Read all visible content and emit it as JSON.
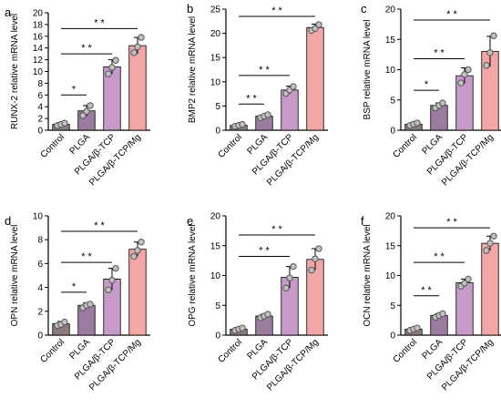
{
  "figure": {
    "colors": {
      "bars": [
        "#8b7b7b",
        "#9b7ba0",
        "#c79ac9",
        "#f4a6a6"
      ],
      "points": "#c0c0c0",
      "axis": "#000000"
    }
  },
  "chart_data": [
    {
      "type": "bar",
      "panel_label": "a",
      "ylabel": "RUNX-2 relative mRNA level",
      "categories": [
        "Control",
        "PLGA",
        "PLGA/β-TCP",
        "PLGA/β-TCP/Mg"
      ],
      "yticks": [
        "0",
        "2",
        "4",
        "6",
        "8",
        "10",
        "12",
        "14",
        "16",
        "18",
        "20"
      ],
      "ylim": [
        0,
        20
      ],
      "values": [
        1.0,
        3.3,
        10.8,
        14.4
      ],
      "errors": [
        0.3,
        0.9,
        1.2,
        1.4
      ],
      "points": [
        [
          0.8,
          1.0,
          1.2
        ],
        [
          2.5,
          3.2,
          4.2
        ],
        [
          9.6,
          10.7,
          11.9
        ],
        [
          13.2,
          14.2,
          15.8
        ]
      ],
      "significance": [
        {
          "from": 0,
          "to": 1,
          "y": 6.0,
          "label": "*"
        },
        {
          "from": 0,
          "to": 2,
          "y": 13.0,
          "label": "* *"
        },
        {
          "from": 0,
          "to": 3,
          "y": 17.3,
          "label": "* *"
        }
      ]
    },
    {
      "type": "bar",
      "panel_label": "b",
      "ylabel": "BMP2 relative mRNA level",
      "categories": [
        "Control",
        "PLGA",
        "PLGA/β-TCP",
        "PLGA/β-TCP/Mg"
      ],
      "yticks": [
        "0",
        "5",
        "10",
        "15",
        "20",
        "25"
      ],
      "ylim": [
        0,
        25
      ],
      "values": [
        1.0,
        2.9,
        8.3,
        21.2
      ],
      "errors": [
        0.2,
        0.3,
        0.8,
        0.7
      ],
      "points": [
        [
          0.8,
          1.0,
          1.2
        ],
        [
          2.6,
          2.9,
          3.2
        ],
        [
          7.6,
          8.3,
          9.0
        ],
        [
          20.6,
          21.0,
          21.8
        ]
      ],
      "significance": [
        {
          "from": 0,
          "to": 1,
          "y": 5.4,
          "label": "* *"
        },
        {
          "from": 0,
          "to": 2,
          "y": 11.3,
          "label": "* *"
        },
        {
          "from": 0,
          "to": 3,
          "y": 23.5,
          "label": "* *"
        }
      ]
    },
    {
      "type": "bar",
      "panel_label": "c",
      "ylabel": "BSP relative mRNA level",
      "categories": [
        "Control",
        "PLGA",
        "PLGA/β-TCP",
        "PLGA/β-TCP/Mg"
      ],
      "yticks": [
        "0",
        "5",
        "10",
        "15",
        "20"
      ],
      "ylim": [
        0,
        20
      ],
      "values": [
        1.0,
        4.1,
        9.0,
        13.0
      ],
      "errors": [
        0.2,
        0.4,
        1.3,
        2.5
      ],
      "points": [
        [
          0.8,
          1.0,
          1.2
        ],
        [
          3.7,
          4.1,
          4.5
        ],
        [
          7.8,
          9.2,
          10.0
        ],
        [
          10.7,
          12.8,
          15.6
        ]
      ],
      "significance": [
        {
          "from": 0,
          "to": 1,
          "y": 6.6,
          "label": "*"
        },
        {
          "from": 0,
          "to": 2,
          "y": 11.8,
          "label": "* *"
        },
        {
          "from": 0,
          "to": 3,
          "y": 18.2,
          "label": "* *"
        }
      ]
    },
    {
      "type": "bar",
      "panel_label": "d",
      "ylabel": "OPN relative mRNA level",
      "categories": [
        "Control",
        "PLGA",
        "PLGA/β-TCP",
        "PLGA/β-TCP/Mg"
      ],
      "yticks": [
        "0",
        "2",
        "4",
        "6",
        "8",
        "10"
      ],
      "ylim": [
        0,
        10
      ],
      "values": [
        0.95,
        2.5,
        4.7,
        7.2
      ],
      "errors": [
        0.2,
        0.2,
        0.9,
        0.6
      ],
      "points": [
        [
          0.8,
          0.9,
          1.1
        ],
        [
          2.3,
          2.5,
          2.6
        ],
        [
          3.8,
          4.6,
          5.6
        ],
        [
          6.6,
          7.1,
          7.8
        ]
      ],
      "significance": [
        {
          "from": 0,
          "to": 1,
          "y": 3.6,
          "label": "*"
        },
        {
          "from": 0,
          "to": 2,
          "y": 6.1,
          "label": "* *"
        },
        {
          "from": 0,
          "to": 3,
          "y": 8.7,
          "label": "* *"
        }
      ]
    },
    {
      "type": "bar",
      "panel_label": "e",
      "ylabel": "OPG relative mRNA level",
      "categories": [
        "Control",
        "PLGA",
        "PLGA/β-TCP",
        "PLGA/β-TCP/Mg"
      ],
      "yticks": [
        "0",
        "5",
        "10",
        "15",
        "20"
      ],
      "ylim": [
        0,
        20
      ],
      "values": [
        1.0,
        3.2,
        9.7,
        12.7
      ],
      "errors": [
        0.2,
        0.3,
        1.8,
        1.8
      ],
      "points": [
        [
          0.8,
          1.0,
          1.2
        ],
        [
          2.9,
          3.2,
          3.5
        ],
        [
          7.9,
          9.6,
          11.5
        ],
        [
          10.9,
          12.8,
          14.5
        ]
      ],
      "significance": [
        {
          "from": 0,
          "to": 2,
          "y": 13.2,
          "label": "* *"
        },
        {
          "from": 0,
          "to": 3,
          "y": 16.8,
          "label": "* *"
        }
      ]
    },
    {
      "type": "bar",
      "panel_label": "f",
      "ylabel": "OCN relative mRNA level",
      "categories": [
        "Control",
        "PLGA",
        "PLGA/β-TCP",
        "PLGA/β-TCP/Mg"
      ],
      "yticks": [
        "0",
        "5",
        "10",
        "15",
        "20"
      ],
      "ylim": [
        0,
        20
      ],
      "values": [
        1.0,
        3.3,
        8.8,
        15.4
      ],
      "errors": [
        0.2,
        0.3,
        0.6,
        1.2
      ],
      "points": [
        [
          0.8,
          1.0,
          1.2
        ],
        [
          3.0,
          3.3,
          3.6
        ],
        [
          8.2,
          8.7,
          9.4
        ],
        [
          14.2,
          15.4,
          16.6
        ]
      ],
      "significance": [
        {
          "from": 0,
          "to": 1,
          "y": 6.6,
          "label": "* *"
        },
        {
          "from": 0,
          "to": 2,
          "y": 12.2,
          "label": "* *"
        },
        {
          "from": 0,
          "to": 3,
          "y": 18.0,
          "label": "* *"
        }
      ]
    }
  ]
}
